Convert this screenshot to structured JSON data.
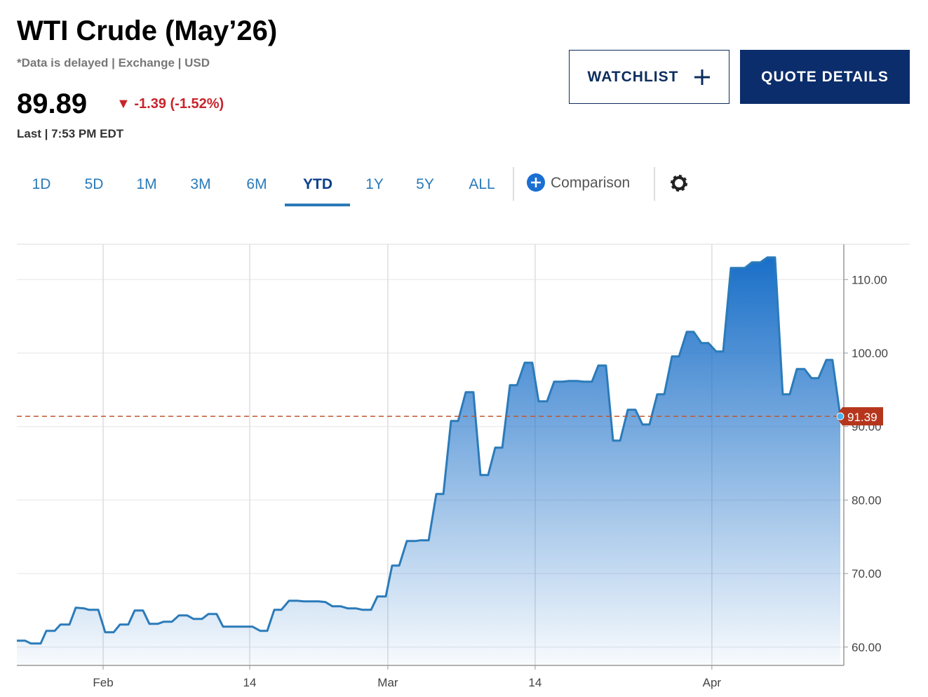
{
  "header": {
    "title": "WTI Crude (May’26)",
    "subtitle": "*Data is delayed | Exchange | USD",
    "price": "89.89",
    "change": "-1.39 (-1.52%)",
    "last": "Last | 7:53 PM EDT"
  },
  "buttons": [
    "WATCHLIST",
    "QUOTE DETAILS"
  ],
  "tabs": [
    "1D",
    "5D",
    "1M",
    "3M",
    "6M",
    "YTD",
    "1Y",
    "5Y",
    "ALL"
  ],
  "active_tab": 5,
  "comparison": "Comparison",
  "chart_data": {
    "type": "area",
    "color": "#2b7bb9",
    "x": [
      -5.86,
      -5.29,
      -4.9,
      -4.24,
      -3.86,
      -3.29,
      -2.9,
      -2.29,
      -1.86,
      -1.29,
      -0.95,
      -0.33,
      0.14,
      0.71,
      1.14,
      1.71,
      2.14,
      2.71,
      3.14,
      3.71,
      4.1,
      4.67,
      5.14,
      5.71,
      6.14,
      6.71,
      7.14,
      7.71,
      8.14,
      8.71,
      9.14,
      9.71,
      10.14,
      10.67,
      11.14,
      11.62,
      12.1,
      12.62,
      13.19,
      13.62,
      14.19,
      14.62,
      15.1,
      15.57,
      16.14,
      16.62,
      17.19,
      17.62,
      18.19,
      18.62,
      19.19,
      19.62,
      20.1,
      20.62,
      21.19,
      21.52,
      22.1,
      22.62,
      23.1,
      23.62,
      24.1,
      24.62,
      25.14,
      25.62,
      26.14,
      26.62,
      27.1,
      27.62,
      28.1,
      28.62,
      29.14,
      29.57,
      30.14,
      30.62,
      31.19,
      31.62,
      32.19,
      32.62,
      33.19,
      33.62,
      34.14,
      34.62,
      35.1,
      35.62,
      36.14,
      36.62,
      37.1,
      37.62,
      38.1,
      38.62,
      39.1,
      39.62,
      40.1,
      40.62,
      41.1,
      41.62,
      42.1,
      42.62,
      43.57,
      44.05,
      44.62,
      45.1,
      45.62,
      46.14,
      46.62,
      47.1,
      47.62,
      48.1,
      48.57,
      49.1,
      49.52,
      50.05
    ],
    "values": [
      60.86,
      60.86,
      60.48,
      60.48,
      62.2,
      62.2,
      63.06,
      63.06,
      65.35,
      65.25,
      65.06,
      65.06,
      62.01,
      62.01,
      63.06,
      63.06,
      64.97,
      64.97,
      63.15,
      63.15,
      63.44,
      63.44,
      64.3,
      64.3,
      63.82,
      63.82,
      64.49,
      64.49,
      62.77,
      62.77,
      62.77,
      62.77,
      62.77,
      62.2,
      62.2,
      65.06,
      65.06,
      66.3,
      66.3,
      66.21,
      66.21,
      66.21,
      66.11,
      65.54,
      65.54,
      65.25,
      65.25,
      65.06,
      65.06,
      66.88,
      66.88,
      71.08,
      71.08,
      74.42,
      74.42,
      74.52,
      74.52,
      80.82,
      80.82,
      90.76,
      90.76,
      94.67,
      94.67,
      83.4,
      83.4,
      87.13,
      87.13,
      95.63,
      95.63,
      98.68,
      98.68,
      93.43,
      93.43,
      96.1,
      96.1,
      96.2,
      96.2,
      96.1,
      96.1,
      98.3,
      98.3,
      88.08,
      88.08,
      92.28,
      92.28,
      90.28,
      90.28,
      94.38,
      94.38,
      99.54,
      99.54,
      102.88,
      102.88,
      101.36,
      101.36,
      100.21,
      100.21,
      111.58,
      111.58,
      112.34,
      112.34,
      113.01,
      113.01,
      94.38,
      94.38,
      97.82,
      97.82,
      96.58,
      96.58,
      99.06,
      99.06,
      91.39
    ],
    "xlim": [
      -5.86,
      50.29
    ],
    "xticks": [
      {
        "value": 0,
        "label": "Feb"
      },
      {
        "value": 9.95,
        "label": "14"
      },
      {
        "value": 19.33,
        "label": "Mar"
      },
      {
        "value": 29.33,
        "label": "14"
      },
      {
        "value": 41.33,
        "label": "Apr"
      }
    ],
    "ylim": [
      57.5,
      114.8
    ],
    "yticks": [
      {
        "value": 60,
        "label": "60.00"
      },
      {
        "value": 70,
        "label": "70.00"
      },
      {
        "value": 80,
        "label": "80.00"
      },
      {
        "value": 90,
        "label": "90.00"
      },
      {
        "value": 100,
        "label": "100.00"
      },
      {
        "value": 110,
        "label": "110.00"
      }
    ],
    "reference_line": 91.39,
    "grid": true
  }
}
